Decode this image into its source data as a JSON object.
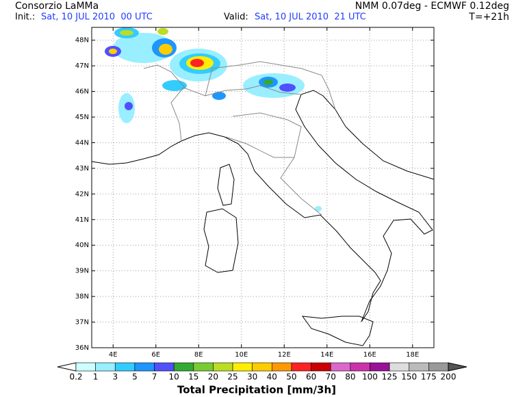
{
  "header": {
    "brand": "Consorzio LaMMa",
    "model": "NMM 0.07deg - ECMWF 0.12deg",
    "init_label": "Init.:",
    "init_time": "Sat, 10 JUL 2010  00 UTC",
    "valid_label": "Valid:",
    "valid_time": "Sat, 10 JUL 2010  21 UTC",
    "lead": "T=+21h"
  },
  "map": {
    "lonlim": [
      3,
      19
    ],
    "latlim": [
      36,
      48.5
    ],
    "lat_ticks": [
      {
        "value": 36,
        "label": "36N"
      },
      {
        "value": 37,
        "label": "37N"
      },
      {
        "value": 38,
        "label": "38N"
      },
      {
        "value": 39,
        "label": "39N"
      },
      {
        "value": 40,
        "label": "40N"
      },
      {
        "value": 41,
        "label": "41N"
      },
      {
        "value": 42,
        "label": "42N"
      },
      {
        "value": 43,
        "label": "43N"
      },
      {
        "value": 44,
        "label": "44N"
      },
      {
        "value": 45,
        "label": "45N"
      },
      {
        "value": 46,
        "label": "46N"
      },
      {
        "value": 47,
        "label": "47N"
      },
      {
        "value": 48,
        "label": "48N"
      }
    ],
    "lon_ticks": [
      {
        "value": 4,
        "label": "4E"
      },
      {
        "value": 6,
        "label": "6E"
      },
      {
        "value": 8,
        "label": "8E"
      },
      {
        "value": 10,
        "label": "10E"
      },
      {
        "value": 12,
        "label": "12E"
      },
      {
        "value": 14,
        "label": "14E"
      },
      {
        "value": 16,
        "label": "16E"
      },
      {
        "value": 18,
        "label": "18E"
      }
    ],
    "grid": true
  },
  "colorbar": {
    "title": "Total Precipitation [mm/3h]",
    "labels": [
      0.2,
      1,
      3,
      5,
      7,
      10,
      15,
      20,
      25,
      30,
      40,
      50,
      60,
      70,
      80,
      100,
      125,
      150,
      175,
      200
    ],
    "under_color": "#ffffff",
    "colors": [
      "#ccffff",
      "#99eeff",
      "#33ccff",
      "#1e96ff",
      "#5050ff",
      "#33aa33",
      "#77cc33",
      "#bbdd22",
      "#ffee00",
      "#ffcc00",
      "#ff9900",
      "#ff2222",
      "#cc0000",
      "#dd66cc",
      "#cc33aa",
      "#991199",
      "#dddddd",
      "#bbbbbb",
      "#999999"
    ],
    "over_color": "#555555"
  }
}
